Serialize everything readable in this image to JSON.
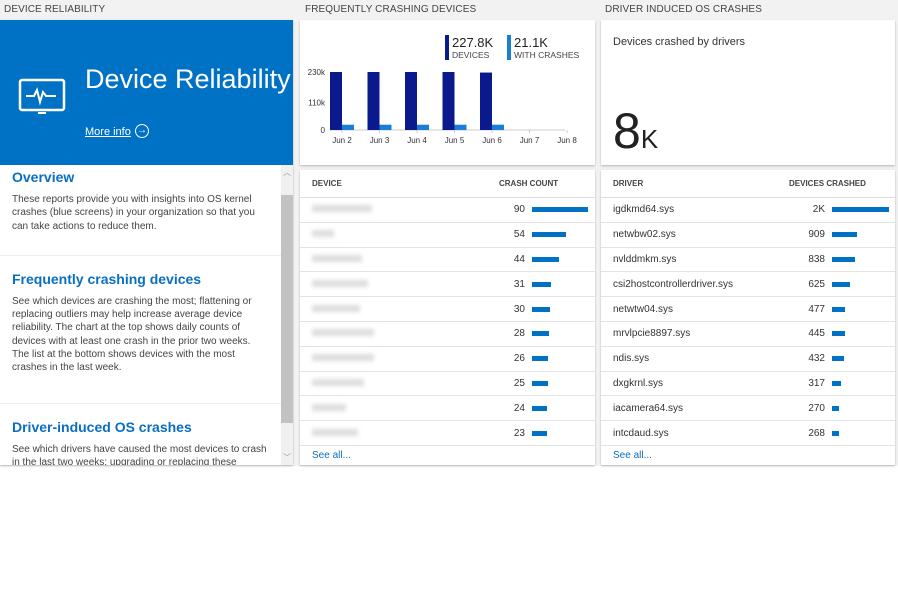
{
  "sections": {
    "left": "DEVICE RELIABILITY",
    "middle": "FREQUENTLY CRASHING DEVICES",
    "right": "DRIVER INDUCED OS CRASHES"
  },
  "hero": {
    "title": "Device Reliability",
    "more_info": "More info",
    "icon": "monitor-pulse-icon",
    "color": "#0072c6"
  },
  "info": [
    {
      "title": "Overview",
      "body": "These reports provide you with insights into OS kernel crashes (blue screens) in your organization so that you can take actions to reduce them."
    },
    {
      "title": "Frequently crashing devices",
      "body": "See which devices are crashing the most; flattening or replacing outliers may help increase average device reliability. The chart at the top shows daily counts of devices with at least one crash in the prior two weeks. The list at the bottom shows devices with the most crashes in the last week."
    },
    {
      "title": "Driver-induced OS crashes",
      "body": "See which drivers have caused the most devices to crash in the last two weeks; upgrading or replacing these drivers"
    }
  ],
  "chart_data": {
    "type": "bar",
    "categories": [
      "Jun 2",
      "Jun 3",
      "Jun 4",
      "Jun 5",
      "Jun 6",
      "Jun 7",
      "Jun 8"
    ],
    "series": [
      {
        "name": "DEVICES",
        "color": "#0a1a8c",
        "values": [
          230000,
          230000,
          230000,
          230000,
          227800,
          null,
          null
        ]
      },
      {
        "name": "WITH CRASHES",
        "color": "#1a7fd4",
        "values": [
          21000,
          21000,
          21000,
          21000,
          21100,
          null,
          null
        ]
      }
    ],
    "yticks": [
      "0",
      "110k",
      "230k"
    ],
    "ylim": [
      0,
      230000
    ],
    "legend": [
      {
        "value": "227.8K",
        "label": "DEVICES"
      },
      {
        "value": "21.1K",
        "label": "WITH CRASHES"
      }
    ]
  },
  "devices": {
    "col1": "DEVICE",
    "col2": "CRASH COUNT",
    "see_all": "See all...",
    "rows": [
      {
        "count": "90",
        "pct": 100
      },
      {
        "count": "54",
        "pct": 60
      },
      {
        "count": "44",
        "pct": 49
      },
      {
        "count": "31",
        "pct": 34
      },
      {
        "count": "30",
        "pct": 33
      },
      {
        "count": "28",
        "pct": 31
      },
      {
        "count": "26",
        "pct": 29
      },
      {
        "count": "25",
        "pct": 28
      },
      {
        "count": "24",
        "pct": 27
      },
      {
        "count": "23",
        "pct": 26
      }
    ]
  },
  "drivers_tile": {
    "label": "Devices crashed by drivers",
    "value": "8",
    "unit": "K"
  },
  "drivers": {
    "col1": "DRIVER",
    "col2": "DEVICES CRASHED",
    "see_all": "See all...",
    "rows": [
      {
        "name": "igdkmd64.sys",
        "count": "2K",
        "pct": 100
      },
      {
        "name": "netwbw02.sys",
        "count": "909",
        "pct": 44
      },
      {
        "name": "nvlddmkm.sys",
        "count": "838",
        "pct": 41
      },
      {
        "name": "csi2hostcontrollerdriver.sys",
        "count": "625",
        "pct": 31
      },
      {
        "name": "netwtw04.sys",
        "count": "477",
        "pct": 23
      },
      {
        "name": "mrvlpcie8897.sys",
        "count": "445",
        "pct": 22
      },
      {
        "name": "ndis.sys",
        "count": "432",
        "pct": 21
      },
      {
        "name": "dxgkrnl.sys",
        "count": "317",
        "pct": 15
      },
      {
        "name": "iacamera64.sys",
        "count": "270",
        "pct": 13
      },
      {
        "name": "intcdaud.sys",
        "count": "268",
        "pct": 13
      }
    ]
  }
}
